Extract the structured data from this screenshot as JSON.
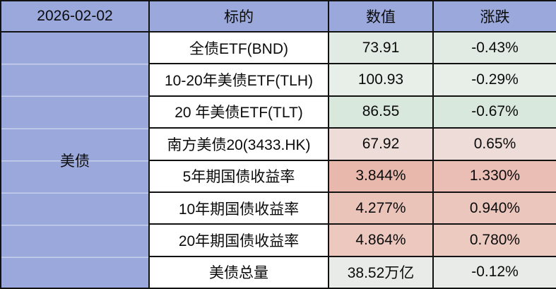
{
  "header": {
    "date": "2026-02-02",
    "subject": "标的",
    "value": "数值",
    "change": "涨跌"
  },
  "group_label": "美债",
  "rows": [
    {
      "name": "全债ETF(BND)",
      "value": "73.91",
      "change": "-0.43%",
      "value_bg": "#e2ebe3",
      "change_bg": "#e2ebe3"
    },
    {
      "name": "10-20年美债ETF(TLH)",
      "value": "100.93",
      "change": "-0.29%",
      "value_bg": "#e7efe8",
      "change_bg": "#e7efe8"
    },
    {
      "name": "20 年美债ETF(TLT)",
      "value": "86.55",
      "change": "-0.67%",
      "value_bg": "#d8e8dc",
      "change_bg": "#d8e8dc"
    },
    {
      "name": "南方美债20(3433.HK)",
      "value": "67.92",
      "change": "0.65%",
      "value_bg": "#eedcd8",
      "change_bg": "#eedcd8"
    },
    {
      "name": "5年期国债收益率",
      "value": "3.844%",
      "change": "1.330%",
      "value_bg": "#e8b8ad",
      "change_bg": "#eabeb4"
    },
    {
      "name": "10年期国债收益率",
      "value": "4.277%",
      "change": "0.940%",
      "value_bg": "#eac3b9",
      "change_bg": "#ebc6bc"
    },
    {
      "name": "20年期国债收益率",
      "value": "4.864%",
      "change": "0.780%",
      "value_bg": "#ecc8bf",
      "change_bg": "#eccabf"
    },
    {
      "name": "美债总量",
      "value": "38.52万亿",
      "change": "-0.12%",
      "value_bg": "#e8ebe8",
      "change_bg": "#e8ebe8"
    }
  ],
  "colors": {
    "header_bg": "#9aa8dc",
    "border": "#121212",
    "subject_bg": "#ffffff"
  }
}
